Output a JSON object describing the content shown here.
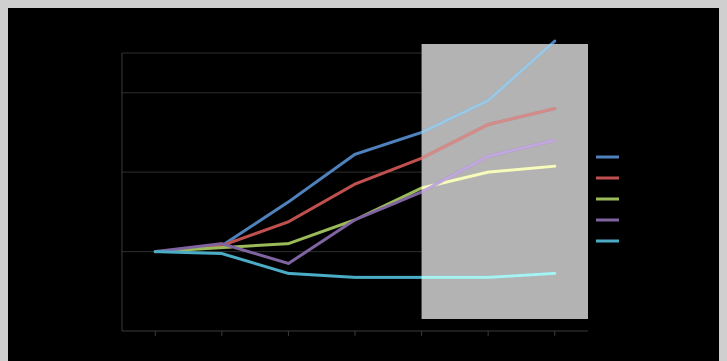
{
  "chart_data": {
    "type": "line",
    "title": "",
    "xlabel": "",
    "ylabel": "",
    "x": [
      0,
      1,
      2,
      3,
      4,
      5,
      6
    ],
    "ylim": [
      -2,
      5
    ],
    "grid": true,
    "legend": "right",
    "highlight_x_range": [
      4,
      6.5
    ],
    "series": [
      {
        "color": "#4f81bd",
        "values": [
          0,
          0.15,
          1.25,
          2.45,
          3.0,
          3.8,
          5.3
        ]
      },
      {
        "color": "#c0504d",
        "values": [
          0,
          0.15,
          0.75,
          1.7,
          2.35,
          3.2,
          3.6
        ]
      },
      {
        "color": "#9bbb59",
        "values": [
          0,
          0.1,
          0.2,
          0.8,
          1.6,
          2.0,
          2.15
        ]
      },
      {
        "color": "#8064a2",
        "values": [
          0,
          0.2,
          -0.3,
          0.8,
          1.5,
          2.4,
          2.8
        ]
      },
      {
        "color": "#4bacc6",
        "values": [
          0,
          -0.05,
          -0.55,
          -0.65,
          -0.65,
          -0.65,
          -0.55
        ]
      }
    ]
  }
}
